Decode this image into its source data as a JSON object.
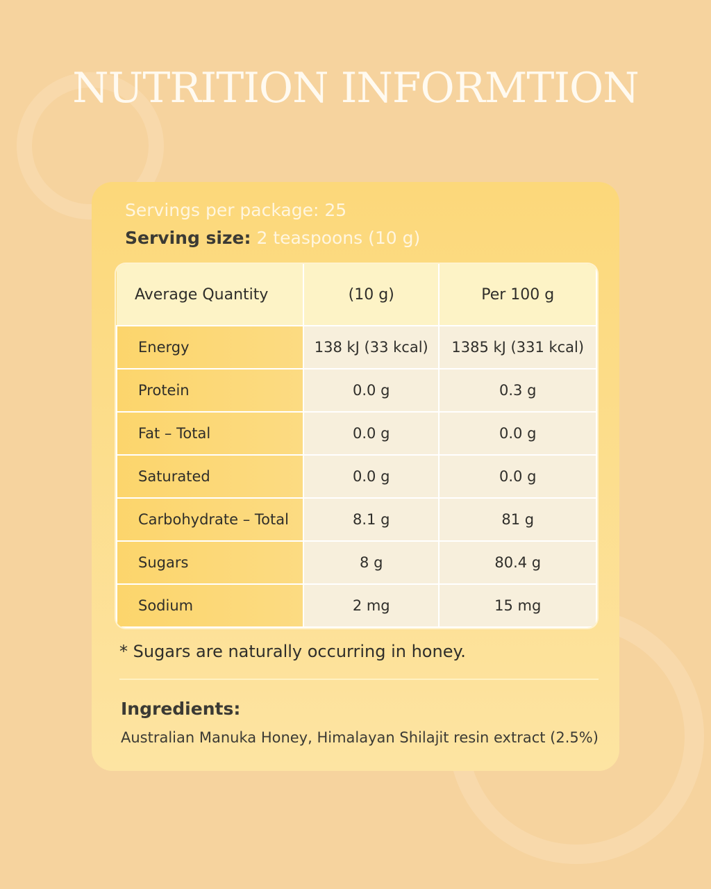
{
  "header": {
    "title": "NUTRITION INFORMTION"
  },
  "servings": {
    "per_package": "Servings per package: 25",
    "size_label": "Serving size:",
    "size_value": "2 teaspoons (10 g)"
  },
  "table": {
    "header": [
      "Average Quantity",
      "(10 g)",
      "Per 100 g"
    ],
    "rows": [
      [
        "Energy",
        "138 kJ (33 kcal)",
        "1385 kJ (331 kcal)"
      ],
      [
        "Protein",
        "0.0 g",
        "0.3 g"
      ],
      [
        "Fat – Total",
        "0.0 g",
        "0.0 g"
      ],
      [
        "Saturated",
        "0.0 g",
        "0.0 g"
      ],
      [
        "Carbohydrate – Total",
        "8.1 g",
        "81 g"
      ],
      [
        "Sugars",
        "8 g",
        "80.4 g"
      ],
      [
        "Sodium",
        "2 mg",
        "15 mg"
      ]
    ]
  },
  "footnote": "* Sugars are naturally occurring in honey.",
  "ingredients": {
    "heading": "Ingredients:",
    "text": "Australian Manuka Honey, Himalayan Shilajit resin extract (2.5%)"
  }
}
